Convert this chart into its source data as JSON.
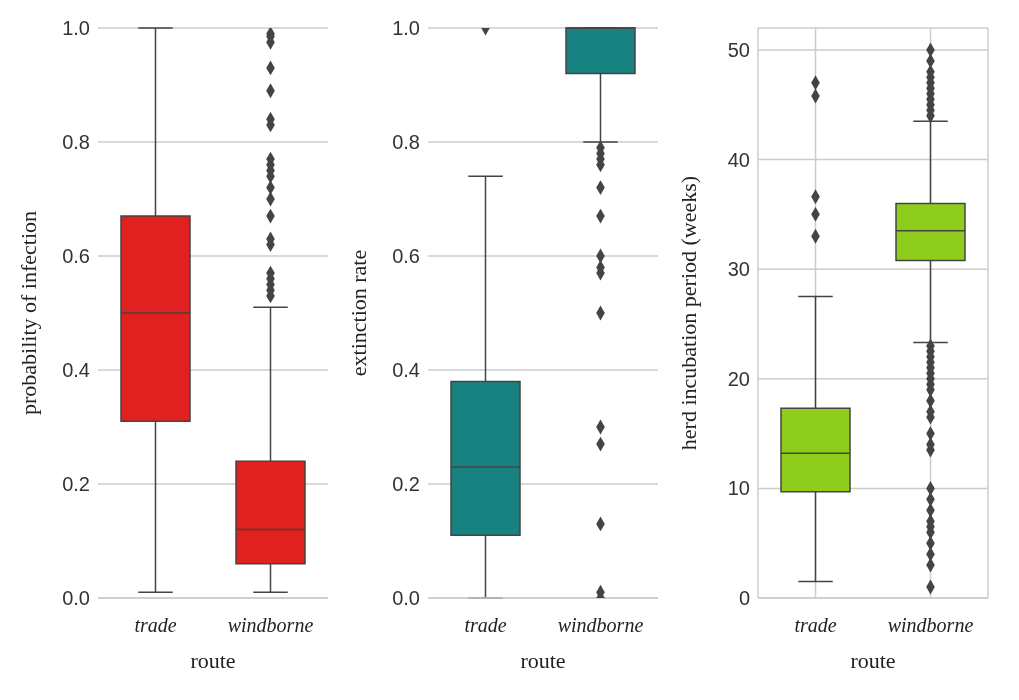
{
  "chart_data": [
    {
      "type": "box",
      "categories": [
        "trade",
        "windborne"
      ],
      "xlabel": "route",
      "ylabel": "probability of infection",
      "color": "#e0211f",
      "ylim": [
        0,
        1
      ],
      "yticks": [
        {
          "value": 0,
          "label": "0.0"
        },
        {
          "value": 0.2,
          "label": "0.2"
        },
        {
          "value": 0.4,
          "label": "0.4"
        },
        {
          "value": 0.6,
          "label": "0.6"
        },
        {
          "value": 0.8,
          "label": "0.8"
        },
        {
          "value": 1,
          "label": "1.0"
        }
      ],
      "grid": "y",
      "marker": "diamond",
      "boxes": [
        {
          "low": 0.01,
          "q1": 0.31,
          "median": 0.5,
          "q3": 0.67,
          "high": 1.0
        },
        {
          "low": 0.01,
          "q1": 0.06,
          "median": 0.12,
          "q3": 0.24,
          "high": 0.51,
          "outliers": [
            0.99,
            0.985,
            0.975,
            0.93,
            0.89,
            0.84,
            0.83,
            0.77,
            0.76,
            0.75,
            0.74,
            0.72,
            0.7,
            0.67,
            0.63,
            0.62,
            0.57,
            0.56,
            0.55,
            0.54,
            0.53
          ]
        }
      ]
    },
    {
      "type": "box",
      "categories": [
        "trade",
        "windborne"
      ],
      "xlabel": "route",
      "ylabel": "extinction rate",
      "color": "#17827f",
      "ylim": [
        0,
        1
      ],
      "yticks": [
        {
          "value": 0,
          "label": "0.0"
        },
        {
          "value": 0.2,
          "label": "0.2"
        },
        {
          "value": 0.4,
          "label": "0.4"
        },
        {
          "value": 0.6,
          "label": "0.6"
        },
        {
          "value": 0.8,
          "label": "0.8"
        },
        {
          "value": 1,
          "label": "1.0"
        }
      ],
      "grid": "y",
      "marker": "diamond",
      "boxes": [
        {
          "low": 0,
          "q1": 0.11,
          "median": 0.23,
          "q3": 0.38,
          "high": 0.74,
          "outliers": [
            1.0
          ]
        },
        {
          "low": 0.8,
          "q1": 0.92,
          "median": 1.0,
          "q3": 1.0,
          "high": 1.0,
          "outliers": [
            0.79,
            0.78,
            0.77,
            0.76,
            0.72,
            0.67,
            0.6,
            0.58,
            0.57,
            0.5,
            0.3,
            0.27,
            0.13,
            0.01,
            0.0
          ]
        }
      ]
    },
    {
      "type": "box",
      "categories": [
        "trade",
        "windborne"
      ],
      "xlabel": "route",
      "ylabel": "herd incubation period (weeks)",
      "color": "#8fcd1c",
      "ylim": [
        0,
        52
      ],
      "yticks": [
        0,
        10,
        20,
        30,
        40,
        50
      ],
      "grid": true,
      "marker": "diamond",
      "boxes": [
        {
          "low": 1.5,
          "q1": 9.7,
          "median": 13.2,
          "q3": 17.3,
          "high": 27.5,
          "outliers": [
            33,
            35,
            36.6,
            45.8,
            47
          ]
        },
        {
          "low": 23.3,
          "q1": 30.8,
          "median": 33.5,
          "q3": 36,
          "high": 43.5,
          "outliers": [
            44,
            44.5,
            45,
            45.5,
            46,
            46.5,
            47,
            47.5,
            48,
            49,
            50,
            23,
            22.5,
            22,
            21.5,
            21,
            20.5,
            20,
            19.5,
            19,
            18,
            17,
            16.5,
            15,
            14,
            13.5,
            10,
            9,
            8,
            7,
            6.5,
            6,
            5,
            4,
            3,
            1
          ]
        }
      ]
    }
  ]
}
